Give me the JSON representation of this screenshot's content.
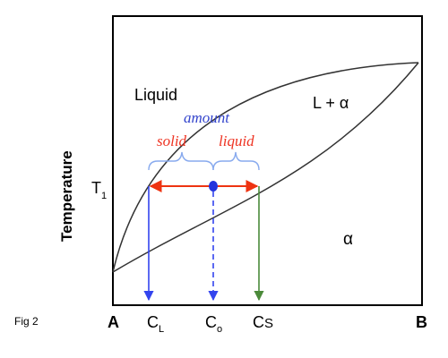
{
  "figure": {
    "caption": "Fig 2",
    "y_axis_label": "Temperature",
    "endpoint_left": "A",
    "endpoint_right": "B"
  },
  "regions": {
    "liquid": "Liquid",
    "two_phase": "L + α",
    "solid": "α"
  },
  "temperature": {
    "label": "T",
    "subscript": "1"
  },
  "compositions": {
    "liquid": {
      "base": "C",
      "subscript": "L"
    },
    "overall": {
      "base": "C",
      "subscript": "o"
    },
    "solid": {
      "base": "C",
      "subscript": "S"
    }
  },
  "lever_rule": {
    "amount_label": "amount",
    "solid_label": "solid",
    "liquid_label": "liquid"
  },
  "colors": {
    "curve": "#333333",
    "frame": "#000000",
    "liquid_arrow": "#3344ee",
    "overall_arrow": "#3344ee",
    "solid_arrow": "#4b8a3a",
    "tie_line": "#ee3311",
    "overall_point": "#2233dd",
    "brace": "#88aaee",
    "amount_text": "#3344cc",
    "phase_text": "#ee3322",
    "overall_text": "#ee3322"
  }
}
